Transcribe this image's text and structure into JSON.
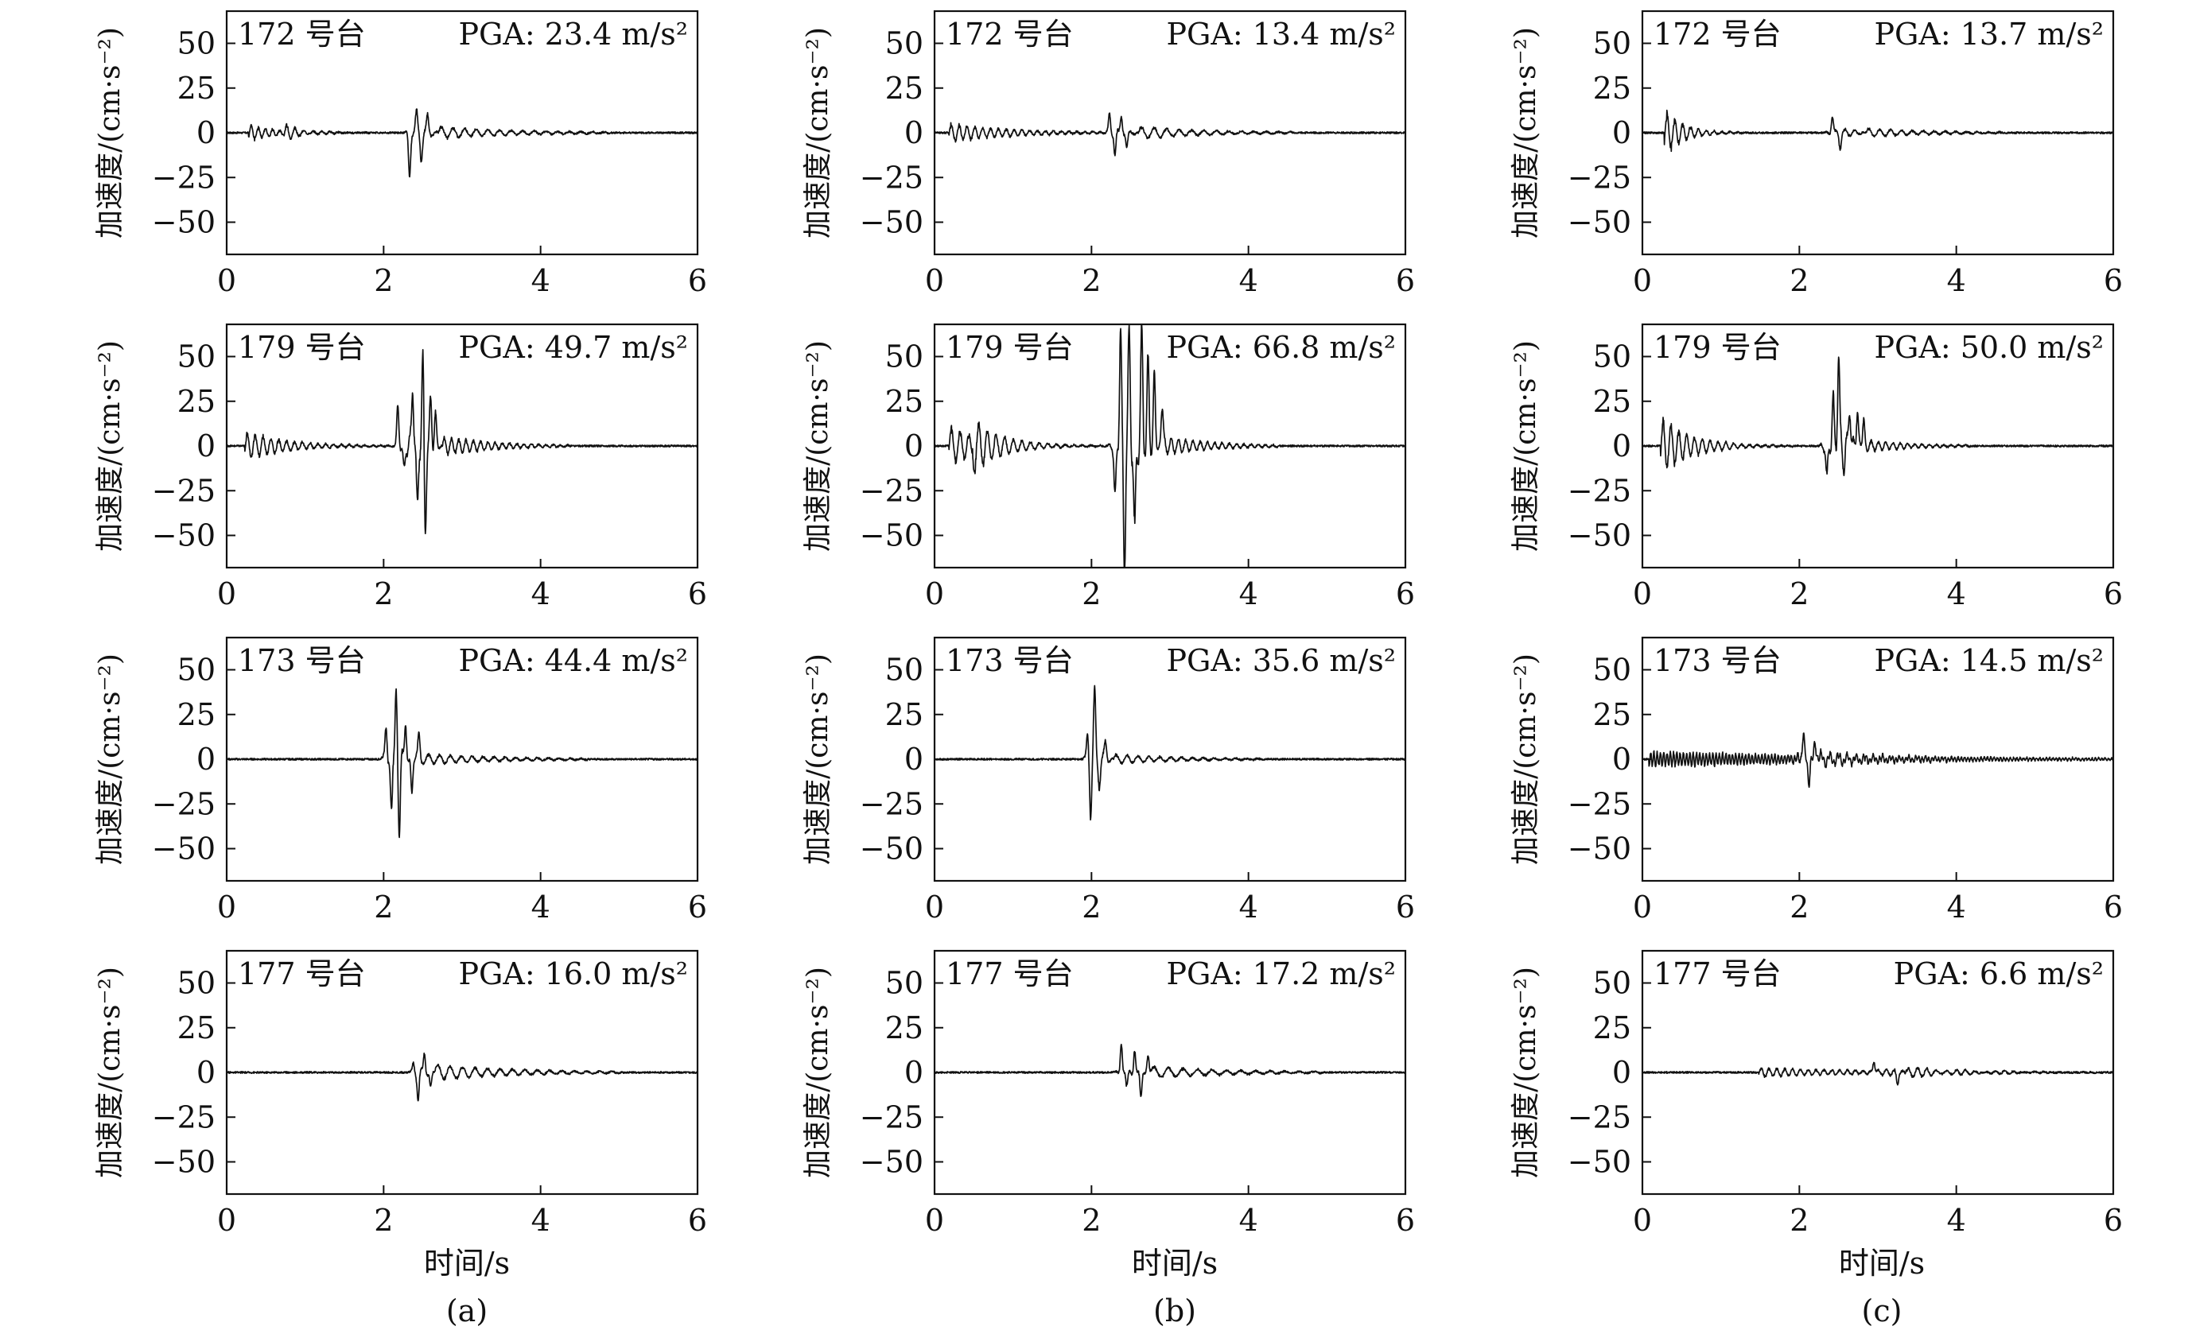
{
  "figure": {
    "y_label": "加速度/(cm·s⁻²)",
    "x_label": "时间/s",
    "column_labels": [
      "(a)",
      "(b)",
      "(c)"
    ],
    "colors": {
      "trace": "#111111",
      "axes": "#111111",
      "background": "#ffffff"
    }
  },
  "chart_data": [
    {
      "type": "line",
      "column": "(a)",
      "row": 1,
      "station": "172 号台",
      "pga_label": "PGA: 23.4 m/s²",
      "pga": 23.4,
      "xlim": [
        0,
        6
      ],
      "ylim": [
        -68,
        68
      ],
      "xticks": [
        0,
        2,
        4,
        6
      ],
      "yticks": [
        50,
        25,
        0,
        -25,
        -50
      ],
      "xlabel": "",
      "ylabel": "加速度/(cm·s⁻²)",
      "events": [
        {
          "t": 0.3,
          "amp": 5,
          "decay": 0.35,
          "freq": 11
        },
        {
          "t": 0.75,
          "amp": 4,
          "decay": 0.3,
          "freq": 9
        }
      ],
      "bursts": [
        {
          "t": 2.25,
          "width": 0.45,
          "freq": 7.5,
          "peaks": [
            [
              2.33,
              -23.4
            ],
            [
              2.42,
              10.5
            ],
            [
              2.48,
              -13
            ],
            [
              2.56,
              8
            ]
          ],
          "coda": 4,
          "codaLen": 2.2
        }
      ]
    },
    {
      "type": "line",
      "column": "(b)",
      "row": 1,
      "station": "172 号台",
      "pga_label": "PGA: 13.4 m/s²",
      "pga": 13.4,
      "xlim": [
        0,
        6
      ],
      "ylim": [
        -68,
        68
      ],
      "xticks": [
        0,
        2,
        4,
        6
      ],
      "yticks": [
        50,
        25,
        0,
        -25,
        -50
      ],
      "xlabel": "",
      "ylabel": "加速度/(cm·s⁻²)",
      "events": [
        {
          "t": 0.2,
          "amp": 6,
          "decay": 0.8,
          "freq": 10
        }
      ],
      "bursts": [
        {
          "t": 2.15,
          "width": 0.45,
          "freq": 7,
          "peaks": [
            [
              2.23,
              11
            ],
            [
              2.3,
              -13.4
            ],
            [
              2.38,
              10
            ],
            [
              2.45,
              -9
            ]
          ],
          "coda": 4,
          "codaLen": 2.0
        }
      ]
    },
    {
      "type": "line",
      "column": "(c)",
      "row": 1,
      "station": "172 号台",
      "pga_label": "PGA: 13.7 m/s²",
      "pga": 13.7,
      "xlim": [
        0,
        6
      ],
      "ylim": [
        -68,
        68
      ],
      "xticks": [
        0,
        2,
        4,
        6
      ],
      "yticks": [
        50,
        25,
        0,
        -25,
        -50
      ],
      "xlabel": "",
      "ylabel": "加速度/(cm·s⁻²)",
      "events": [
        {
          "t": 0.3,
          "amp": 13.7,
          "decay": 0.25,
          "freq": 10
        }
      ],
      "bursts": [
        {
          "t": 2.3,
          "width": 0.55,
          "freq": 8,
          "peaks": [
            [
              2.42,
              9
            ],
            [
              2.52,
              -8
            ]
          ],
          "coda": 3,
          "codaLen": 1.8
        }
      ]
    },
    {
      "type": "line",
      "column": "(a)",
      "row": 2,
      "station": "179 号台",
      "pga_label": "PGA: 49.7 m/s²",
      "pga": 49.7,
      "xlim": [
        0,
        6
      ],
      "ylim": [
        -68,
        68
      ],
      "xticks": [
        0,
        2,
        4,
        6
      ],
      "yticks": [
        50,
        25,
        0,
        -25,
        -50
      ],
      "xlabel": "",
      "ylabel": "加速度/(cm·s⁻²)",
      "events": [
        {
          "t": 0.25,
          "amp": 9,
          "decay": 0.55,
          "freq": 10
        }
      ],
      "bursts": [
        {
          "t": 2.15,
          "width": 0.6,
          "freq": 12,
          "peaks": [
            [
              2.18,
              22
            ],
            [
              2.26,
              -15
            ],
            [
              2.37,
              33
            ],
            [
              2.43,
              -36
            ],
            [
              2.5,
              49.7
            ],
            [
              2.53,
              -48
            ],
            [
              2.6,
              25
            ],
            [
              2.66,
              17
            ]
          ],
          "coda": 6,
          "codaLen": 1.6
        }
      ]
    },
    {
      "type": "line",
      "column": "(b)",
      "row": 2,
      "station": "179 号台",
      "pga_label": "PGA: 66.8 m/s²",
      "pga": 66.8,
      "xlim": [
        0,
        6
      ],
      "ylim": [
        -68,
        68
      ],
      "xticks": [
        0,
        2,
        4,
        6
      ],
      "yticks": [
        50,
        25,
        0,
        -25,
        -50
      ],
      "xlabel": "",
      "ylabel": "加速度/(cm·s⁻²)",
      "events": [
        {
          "t": 0.2,
          "amp": 12,
          "decay": 0.55,
          "freq": 9
        },
        {
          "t": 0.5,
          "amp": -15,
          "decay": 0.3,
          "freq": 9
        }
      ],
      "bursts": [
        {
          "t": 2.2,
          "width": 0.7,
          "freq": 12,
          "peaks": [
            [
              2.3,
              -30
            ],
            [
              2.37,
              64
            ],
            [
              2.42,
              -66.8
            ],
            [
              2.48,
              62
            ],
            [
              2.55,
              -50
            ],
            [
              2.64,
              62
            ],
            [
              2.72,
              45
            ],
            [
              2.8,
              38
            ],
            [
              2.9,
              20
            ]
          ],
          "coda": 6,
          "codaLen": 1.5
        }
      ]
    },
    {
      "type": "line",
      "column": "(c)",
      "row": 2,
      "station": "179 号台",
      "pga_label": "PGA: 50.0 m/s²",
      "pga": 50.0,
      "xlim": [
        0,
        6
      ],
      "ylim": [
        -68,
        68
      ],
      "xticks": [
        0,
        2,
        4,
        6
      ],
      "yticks": [
        50,
        25,
        0,
        -25,
        -50
      ],
      "xlabel": "",
      "ylabel": "加速度/(cm·s⁻²)",
      "events": [
        {
          "t": 0.25,
          "amp": 18,
          "decay": 0.4,
          "freq": 10
        }
      ],
      "bursts": [
        {
          "t": 2.25,
          "width": 0.55,
          "freq": 12,
          "peaks": [
            [
              2.35,
              -18
            ],
            [
              2.43,
              25
            ],
            [
              2.5,
              50.0
            ],
            [
              2.57,
              -10
            ],
            [
              2.64,
              22
            ],
            [
              2.74,
              20
            ],
            [
              2.82,
              12
            ]
          ],
          "coda": 4,
          "codaLen": 1.4
        }
      ]
    },
    {
      "type": "line",
      "column": "(a)",
      "row": 3,
      "station": "173 号台",
      "pga_label": "PGA: 44.4 m/s²",
      "pga": 44.4,
      "xlim": [
        0,
        6
      ],
      "ylim": [
        -68,
        68
      ],
      "xticks": [
        0,
        2,
        4,
        6
      ],
      "yticks": [
        50,
        25,
        0,
        -25,
        -50
      ],
      "xlabel": "",
      "ylabel": "加速度/(cm·s⁻²)",
      "events": [],
      "bursts": [
        {
          "t": 1.95,
          "width": 0.45,
          "freq": 8,
          "peaks": [
            [
              2.03,
              20
            ],
            [
              2.1,
              -33
            ],
            [
              2.16,
              44.4
            ],
            [
              2.2,
              -44
            ],
            [
              2.28,
              22
            ],
            [
              2.36,
              -20
            ],
            [
              2.45,
              13
            ]
          ],
          "coda": 4,
          "codaLen": 2.2
        }
      ]
    },
    {
      "type": "line",
      "column": "(b)",
      "row": 3,
      "station": "173 号台",
      "pga_label": "PGA: 35.6 m/s²",
      "pga": 35.6,
      "xlim": [
        0,
        6
      ],
      "ylim": [
        -68,
        68
      ],
      "xticks": [
        0,
        2,
        4,
        6
      ],
      "yticks": [
        50,
        25,
        0,
        -25,
        -50
      ],
      "xlabel": "",
      "ylabel": "加速度/(cm·s⁻²)",
      "events": [],
      "bursts": [
        {
          "t": 1.88,
          "width": 0.4,
          "freq": 8,
          "peaks": [
            [
              1.95,
              15
            ],
            [
              1.99,
              -31
            ],
            [
              2.04,
              35.6
            ],
            [
              2.1,
              -12
            ],
            [
              2.18,
              8
            ]
          ],
          "coda": 3,
          "codaLen": 2.0
        }
      ]
    },
    {
      "type": "line",
      "column": "(c)",
      "row": 3,
      "station": "173 号台",
      "pga_label": "PGA: 14.5 m/s²",
      "pga": 14.5,
      "xlim": [
        0,
        6
      ],
      "ylim": [
        -68,
        68
      ],
      "xticks": [
        0,
        2,
        4,
        6
      ],
      "yticks": [
        50,
        25,
        0,
        -25,
        -50
      ],
      "xlabel": "",
      "ylabel": "加速度/(cm·s⁻²)",
      "events": [
        {
          "t": 0.1,
          "amp": 5,
          "decay": 3.0,
          "freq": 24
        }
      ],
      "bursts": [
        {
          "t": 1.85,
          "width": 0.4,
          "freq": 10,
          "peaks": [
            [
              2.05,
              14.5
            ],
            [
              2.12,
              -13
            ],
            [
              2.2,
              9
            ]
          ],
          "coda": 4,
          "codaLen": 1.8
        }
      ]
    },
    {
      "type": "line",
      "column": "(a)",
      "row": 4,
      "station": "177 号台",
      "pga_label": "PGA: 16.0 m/s²",
      "pga": 16.0,
      "xlim": [
        0,
        6
      ],
      "ylim": [
        -68,
        68
      ],
      "xticks": [
        0,
        2,
        4,
        6
      ],
      "yticks": [
        50,
        25,
        0,
        -25,
        -50
      ],
      "xlabel": "时间/s",
      "ylabel": "加速度/(cm·s⁻²)",
      "events": [],
      "bursts": [
        {
          "t": 2.3,
          "width": 0.35,
          "freq": 7,
          "peaks": [
            [
              2.38,
              6
            ],
            [
              2.44,
              -16.0
            ],
            [
              2.52,
              11
            ],
            [
              2.6,
              -8
            ]
          ],
          "coda": 5,
          "codaLen": 2.4
        }
      ]
    },
    {
      "type": "line",
      "column": "(b)",
      "row": 4,
      "station": "177 号台",
      "pga_label": "PGA: 17.2 m/s²",
      "pga": 17.2,
      "xlim": [
        0,
        6
      ],
      "ylim": [
        -68,
        68
      ],
      "xticks": [
        0,
        2,
        4,
        6
      ],
      "yticks": [
        50,
        25,
        0,
        -25,
        -50
      ],
      "xlabel": "时间/s",
      "ylabel": "加速度/(cm·s⁻²)",
      "events": [],
      "bursts": [
        {
          "t": 2.25,
          "width": 0.5,
          "freq": 6,
          "peaks": [
            [
              2.38,
              17.2
            ],
            [
              2.45,
              -10
            ],
            [
              2.55,
              14
            ],
            [
              2.63,
              -15
            ],
            [
              2.72,
              10
            ]
          ],
          "coda": 4,
          "codaLen": 2.2
        }
      ]
    },
    {
      "type": "line",
      "column": "(c)",
      "row": 4,
      "station": "177 号台",
      "pga_label": "PGA: 6.6 m/s²",
      "pga": 6.6,
      "xlim": [
        0,
        6
      ],
      "ylim": [
        -68,
        68
      ],
      "xticks": [
        0,
        2,
        4,
        6
      ],
      "yticks": [
        50,
        25,
        0,
        -25,
        -50
      ],
      "xlabel": "时间/s",
      "ylabel": "加速度/(cm·s⁻²)",
      "events": [
        {
          "t": 1.5,
          "amp": 3,
          "decay": 1.5,
          "freq": 10
        }
      ],
      "bursts": [
        {
          "t": 2.85,
          "width": 0.5,
          "freq": 9,
          "peaks": [
            [
              2.95,
              6.6
            ],
            [
              3.25,
              -6
            ]
          ],
          "coda": 3,
          "codaLen": 1.8
        }
      ]
    }
  ]
}
